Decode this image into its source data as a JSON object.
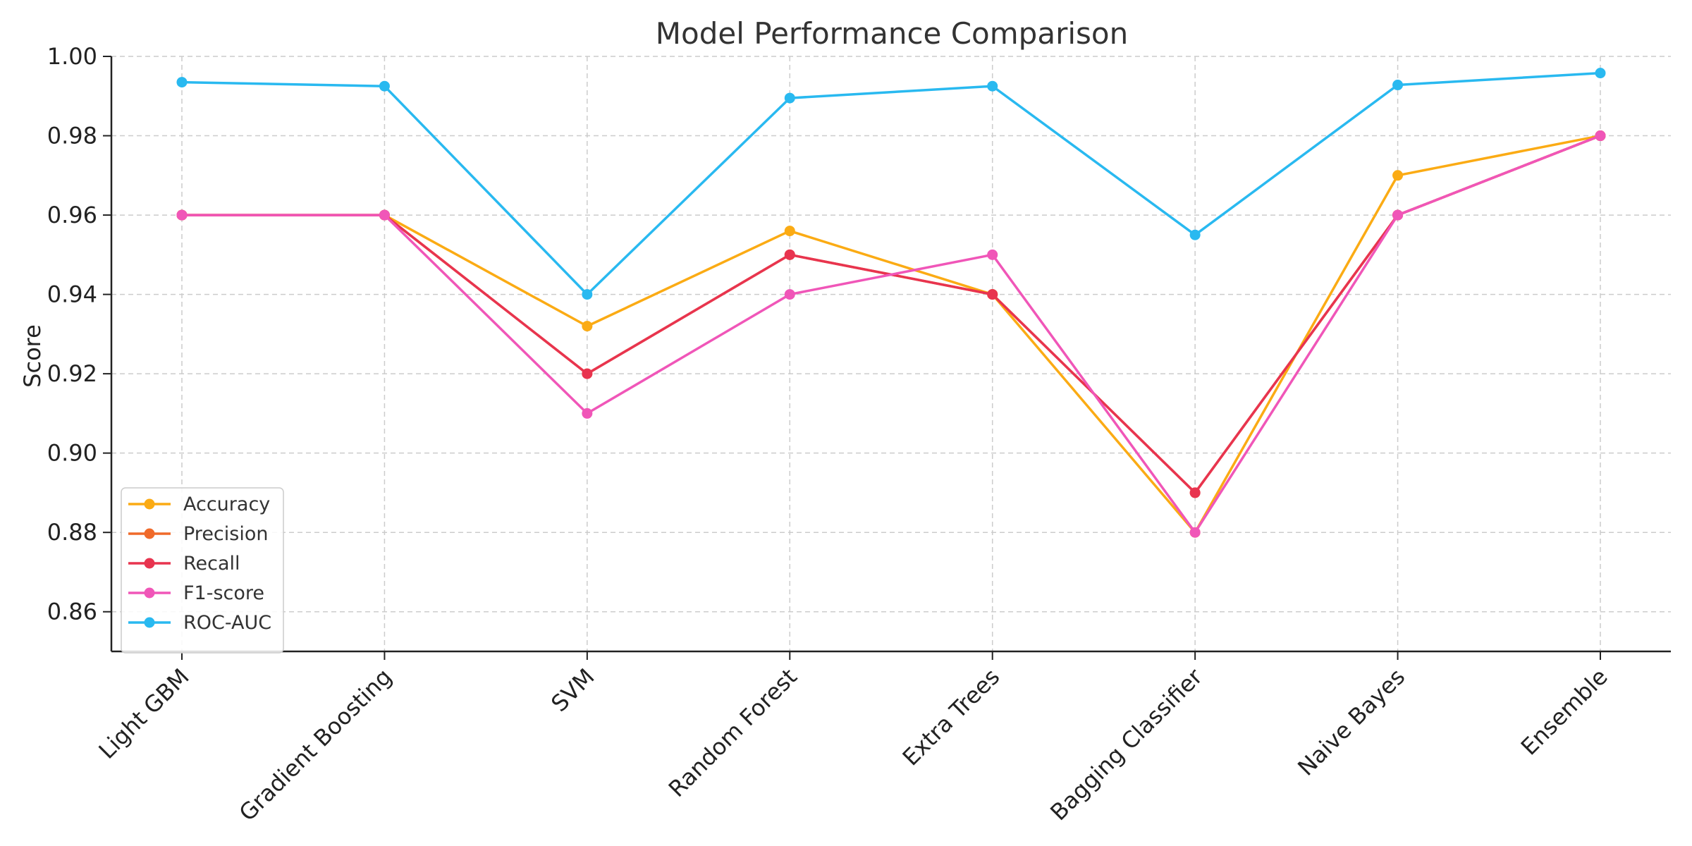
{
  "chart_data": {
    "type": "line",
    "title": "Model Performance Comparison",
    "xlabel": "",
    "ylabel": "Score",
    "categories": [
      "Light GBM",
      "Gradient Boosting",
      "SVM",
      "Random Forest",
      "Extra Trees",
      "Bagging Classifier",
      "Naive Bayes",
      "Ensemble"
    ],
    "ylim": [
      0.85,
      1.0
    ],
    "yticks": [
      "0.86",
      "0.88",
      "0.90",
      "0.92",
      "0.94",
      "0.96",
      "0.98",
      "1.00"
    ],
    "grid": true,
    "legend_position": "bottom-left",
    "series": [
      {
        "name": "Accuracy",
        "color": "#fbab14",
        "values": [
          0.96,
          0.96,
          0.932,
          0.956,
          0.94,
          0.88,
          0.97,
          0.98
        ]
      },
      {
        "name": "Precision",
        "color": "#f06a2a",
        "values": [
          0.96,
          0.96,
          0.92,
          0.95,
          0.94,
          0.89,
          0.96,
          0.98
        ]
      },
      {
        "name": "Recall",
        "color": "#e8344f",
        "values": [
          0.96,
          0.96,
          0.92,
          0.95,
          0.94,
          0.89,
          0.96,
          0.98
        ]
      },
      {
        "name": "F1-score",
        "color": "#f056b8",
        "values": [
          0.96,
          0.96,
          0.91,
          0.94,
          0.95,
          0.88,
          0.96,
          0.98
        ]
      },
      {
        "name": "ROC-AUC",
        "color": "#29b9f0",
        "values": [
          0.9935,
          0.9925,
          0.94,
          0.9895,
          0.9925,
          0.955,
          0.9928,
          0.9958
        ]
      }
    ]
  }
}
